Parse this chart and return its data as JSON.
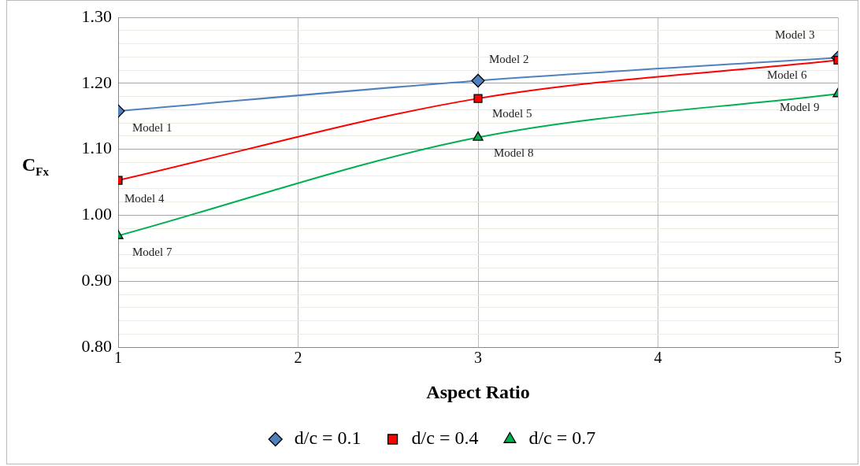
{
  "chart_data": {
    "type": "line",
    "xlabel": "Aspect Ratio",
    "ylabel": "C$_{Fx}$",
    "x": [
      1,
      3,
      5
    ],
    "series": [
      {
        "name": "d/c = 0.1",
        "color": "#4f81bd",
        "marker": "diamond",
        "values": [
          1.158,
          1.204,
          1.239
        ]
      },
      {
        "name": "d/c = 0.4",
        "color": "#ff0000",
        "marker": "square",
        "values": [
          1.053,
          1.177,
          1.235
        ]
      },
      {
        "name": "d/c = 0.7",
        "color": "#00b050",
        "marker": "triangle",
        "values": [
          0.969,
          1.118,
          1.184
        ]
      }
    ],
    "xlim": [
      1,
      5
    ],
    "xticks": [
      1,
      2,
      3,
      4,
      5
    ],
    "ylim": [
      0.8,
      1.3
    ],
    "yticks": [
      {
        "value": 0.8,
        "label": "0.80"
      },
      {
        "value": 0.82,
        "label": null
      },
      {
        "value": 0.84,
        "label": null
      },
      {
        "value": 0.86,
        "label": null
      },
      {
        "value": 0.88,
        "label": null
      },
      {
        "value": 0.9,
        "label": "0.90"
      },
      {
        "value": 0.92,
        "label": null
      },
      {
        "value": 0.94,
        "label": null
      },
      {
        "value": 0.96,
        "label": null
      },
      {
        "value": 0.98,
        "label": null
      },
      {
        "value": 1.0,
        "label": "1.00"
      },
      {
        "value": 1.02,
        "label": null
      },
      {
        "value": 1.04,
        "label": null
      },
      {
        "value": 1.06,
        "label": null
      },
      {
        "value": 1.08,
        "label": null
      },
      {
        "value": 1.1,
        "label": "1.10"
      },
      {
        "value": 1.12,
        "label": null
      },
      {
        "value": 1.14,
        "label": null
      },
      {
        "value": 1.16,
        "label": null
      },
      {
        "value": 1.18,
        "label": null
      },
      {
        "value": 1.2,
        "label": "1.20"
      },
      {
        "value": 1.22,
        "label": null
      },
      {
        "value": 1.24,
        "label": null
      },
      {
        "value": 1.26,
        "label": null
      },
      {
        "value": 1.28,
        "label": null
      },
      {
        "value": 1.3,
        "label": "1.30"
      }
    ],
    "grid": true,
    "legend": "bottom",
    "annotations": [
      {
        "text": "Model 1",
        "x": 1,
        "y": 1.158
      },
      {
        "text": "Model 2",
        "x": 3,
        "y": 1.204
      },
      {
        "text": "Model 3",
        "x": 5,
        "y": 1.239
      },
      {
        "text": "Model 4",
        "x": 1,
        "y": 1.053
      },
      {
        "text": "Model 5",
        "x": 3,
        "y": 1.177
      },
      {
        "text": "Model 6",
        "x": 5,
        "y": 1.235
      },
      {
        "text": "Model 7",
        "x": 1,
        "y": 0.969
      },
      {
        "text": "Model 8",
        "x": 3,
        "y": 1.118
      },
      {
        "text": "Model 9",
        "x": 5,
        "y": 1.184
      }
    ]
  }
}
